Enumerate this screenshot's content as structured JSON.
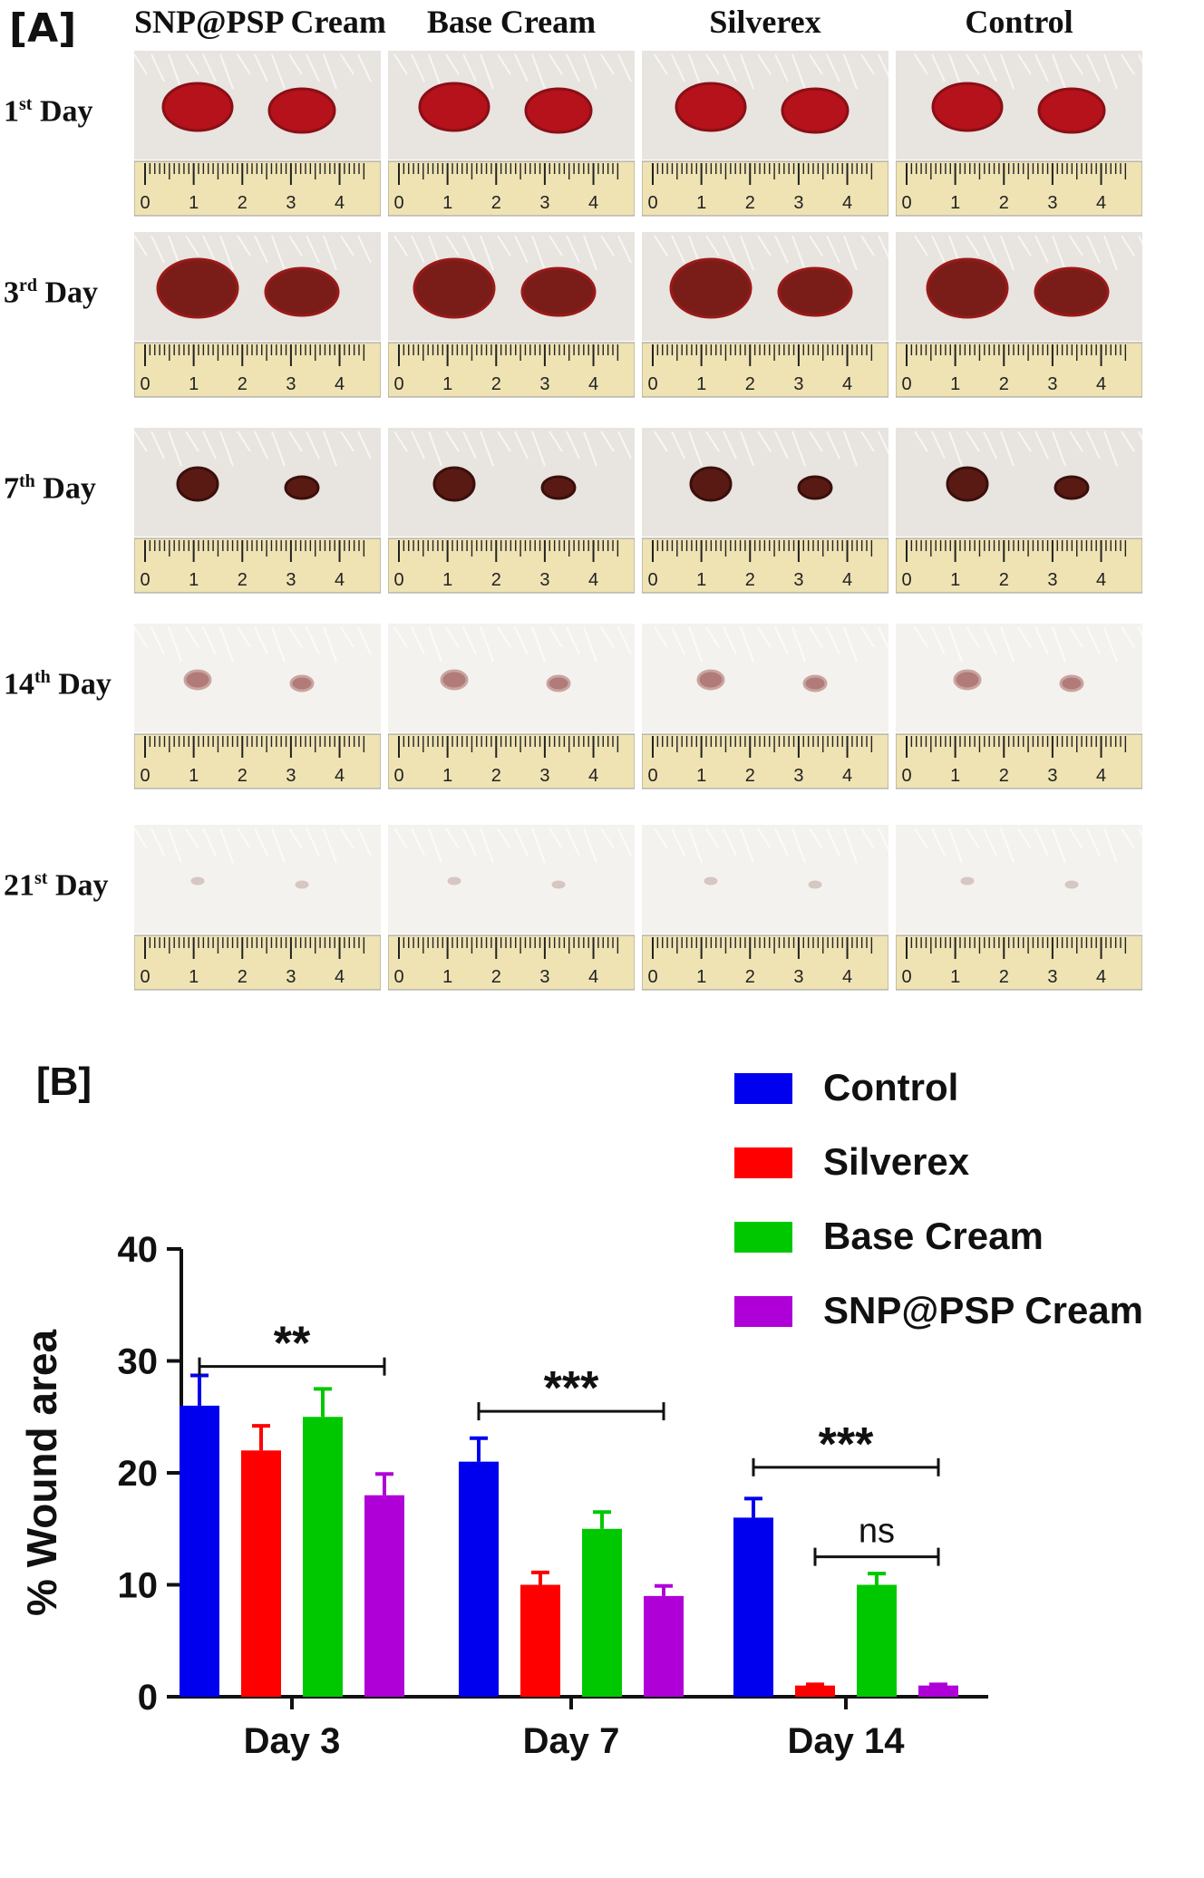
{
  "panel_a": {
    "label": "[A]",
    "columns": [
      "SNP@PSP Cream",
      "Base Cream",
      "Silverex",
      "Control"
    ],
    "rows": [
      {
        "num": "1",
        "sup": "st",
        "day": " Day"
      },
      {
        "num": "3",
        "sup": "rd",
        "day": " Day"
      },
      {
        "num": "7",
        "sup": "th",
        "day": " Day"
      },
      {
        "num": "14",
        "sup": "th",
        "day": " Day"
      },
      {
        "num": "21",
        "sup": "st",
        "day": " Day"
      }
    ],
    "ruler_ticks": [
      "0",
      "1",
      "2",
      "3",
      "4"
    ],
    "colors": {
      "skin": "#e8e4e0",
      "fur": "#f4f2ef",
      "wound": "#b5121b",
      "scab": "#5a1a14",
      "ruler": "#efe3b4"
    }
  },
  "panel_b": {
    "label": "[B]",
    "ylabel": "% Wound area",
    "significance": [
      {
        "label": "**",
        "group": 0,
        "from": 0,
        "to": 3,
        "y": 29.5
      },
      {
        "label": "***",
        "group": 1,
        "from": 0,
        "to": 3,
        "y": 25.5
      },
      {
        "label": "***",
        "group": 2,
        "from": 0,
        "to": 3,
        "y": 20.5
      },
      {
        "label": "ns",
        "group": 2,
        "from": 1,
        "to": 3,
        "y": 12.5
      }
    ]
  },
  "chart_data": {
    "type": "bar",
    "categories": [
      "Day 3",
      "Day 7",
      "Day 14"
    ],
    "series": [
      {
        "name": "Control",
        "color": "#0000ee",
        "values": [
          26,
          21,
          16
        ],
        "errors": [
          2.7,
          2.1,
          1.7
        ]
      },
      {
        "name": "Silverex",
        "color": "#ff0000",
        "values": [
          22,
          10,
          1
        ],
        "errors": [
          2.2,
          1.1,
          0.1
        ]
      },
      {
        "name": "Base Cream",
        "color": "#00c800",
        "values": [
          25,
          15,
          10
        ],
        "errors": [
          2.5,
          1.5,
          1.0
        ]
      },
      {
        "name": "SNP@PSP Cream",
        "color": "#b000d8",
        "values": [
          18,
          9,
          1
        ],
        "errors": [
          1.9,
          0.9,
          0.1
        ]
      }
    ],
    "ylabel": "% Wound area",
    "ylim": [
      0,
      40
    ],
    "yticks": [
      0,
      10,
      20,
      30,
      40
    ],
    "legend": "top-right",
    "grid": false
  }
}
